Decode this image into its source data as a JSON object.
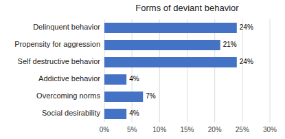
{
  "chart_data": {
    "type": "bar",
    "orientation": "horizontal",
    "title": "Forms of deviant behavior",
    "categories": [
      "Social desirability",
      "Overcoming norms",
      "Addictive behavior",
      "Self destructive behavior",
      "Propensity for aggression",
      "Delinquent behavior"
    ],
    "values": [
      4,
      7,
      4,
      24,
      21,
      24
    ],
    "value_labels": [
      "4%",
      "7%",
      "4%",
      "24%",
      "21%",
      "24%"
    ],
    "data_labels": true,
    "color": "#4472c4",
    "xlim": [
      0,
      30
    ],
    "xticks": [
      {
        "value": 0,
        "label": "0%"
      },
      {
        "value": 5,
        "label": "5%"
      },
      {
        "value": 10,
        "label": "10%"
      },
      {
        "value": 15,
        "label": "15%"
      },
      {
        "value": 20,
        "label": "20%"
      },
      {
        "value": 25,
        "label": "25%"
      },
      {
        "value": 30,
        "label": "30%"
      }
    ],
    "grid": true
  }
}
